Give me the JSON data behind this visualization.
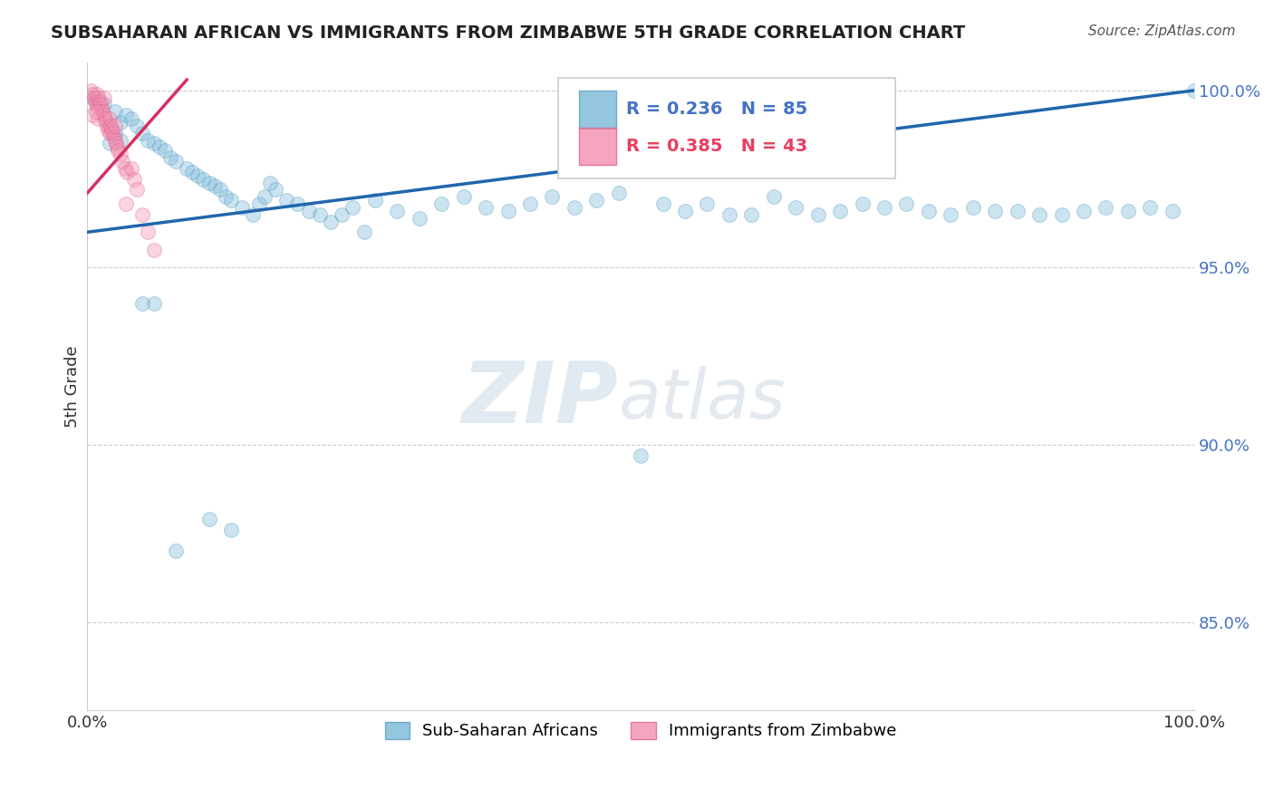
{
  "title": "SUBSAHARAN AFRICAN VS IMMIGRANTS FROM ZIMBABWE 5TH GRADE CORRELATION CHART",
  "source": "Source: ZipAtlas.com",
  "ylabel": "5th Grade",
  "legend_labels": [
    "Sub-Saharan Africans",
    "Immigrants from Zimbabwe"
  ],
  "legend_r_n": [
    {
      "r": "0.236",
      "n": "85"
    },
    {
      "r": "0.385",
      "n": "43"
    }
  ],
  "xlim": [
    0,
    1
  ],
  "ylim": [
    0.825,
    1.008
  ],
  "yticks": [
    0.85,
    0.9,
    0.95,
    1.0
  ],
  "ytick_labels": [
    "85.0%",
    "90.0%",
    "95.0%",
    "100.0%"
  ],
  "xticks": [
    0.0,
    1.0
  ],
  "xtick_labels": [
    "0.0%",
    "100.0%"
  ],
  "blue_line_x": [
    0.0,
    1.0
  ],
  "blue_line_y": [
    0.96,
    1.0
  ],
  "pink_line_x": [
    0.0,
    0.09
  ],
  "pink_line_y": [
    0.971,
    1.003
  ],
  "watermark_zip": "ZIP",
  "watermark_atlas": "atlas",
  "dot_size": 130,
  "dot_alpha": 0.38,
  "blue_color": "#7ab8d9",
  "blue_edge_color": "#5a9cbf",
  "pink_color": "#f48fb1",
  "pink_edge_color": "#e06090",
  "trend_blue_color": "#2166ac",
  "trend_pink_color": "#d63060",
  "grid_color": "#cccccc",
  "background_color": "#ffffff",
  "blue_scatter_x": [
    0.005,
    0.01,
    0.015,
    0.02,
    0.02,
    0.025,
    0.025,
    0.03,
    0.03,
    0.035,
    0.04,
    0.045,
    0.05,
    0.055,
    0.06,
    0.065,
    0.07,
    0.075,
    0.08,
    0.09,
    0.095,
    0.1,
    0.105,
    0.11,
    0.115,
    0.12,
    0.125,
    0.13,
    0.14,
    0.15,
    0.155,
    0.16,
    0.165,
    0.17,
    0.18,
    0.19,
    0.2,
    0.21,
    0.22,
    0.23,
    0.24,
    0.26,
    0.28,
    0.3,
    0.32,
    0.34,
    0.36,
    0.38,
    0.4,
    0.42,
    0.44,
    0.46,
    0.48,
    0.5,
    0.52,
    0.54,
    0.56,
    0.58,
    0.6,
    0.62,
    0.64,
    0.66,
    0.68,
    0.7,
    0.72,
    0.74,
    0.76,
    0.78,
    0.8,
    0.82,
    0.84,
    0.86,
    0.88,
    0.9,
    0.92,
    0.94,
    0.96,
    0.98,
    1.0,
    0.05,
    0.06,
    0.08,
    0.11,
    0.13,
    0.25
  ],
  "blue_scatter_y": [
    0.998,
    0.997,
    0.996,
    0.99,
    0.985,
    0.988,
    0.994,
    0.986,
    0.991,
    0.993,
    0.992,
    0.99,
    0.988,
    0.986,
    0.985,
    0.984,
    0.983,
    0.981,
    0.98,
    0.978,
    0.977,
    0.976,
    0.975,
    0.974,
    0.973,
    0.972,
    0.97,
    0.969,
    0.967,
    0.965,
    0.968,
    0.97,
    0.974,
    0.972,
    0.969,
    0.968,
    0.966,
    0.965,
    0.963,
    0.965,
    0.967,
    0.969,
    0.966,
    0.964,
    0.968,
    0.97,
    0.967,
    0.966,
    0.968,
    0.97,
    0.967,
    0.969,
    0.971,
    0.897,
    0.968,
    0.966,
    0.968,
    0.965,
    0.965,
    0.97,
    0.967,
    0.965,
    0.966,
    0.968,
    0.967,
    0.968,
    0.966,
    0.965,
    0.967,
    0.966,
    0.966,
    0.965,
    0.965,
    0.966,
    0.967,
    0.966,
    0.967,
    0.966,
    1.0,
    0.94,
    0.94,
    0.87,
    0.879,
    0.876,
    0.96
  ],
  "pink_scatter_x": [
    0.003,
    0.005,
    0.006,
    0.007,
    0.008,
    0.009,
    0.01,
    0.01,
    0.01,
    0.011,
    0.012,
    0.013,
    0.014,
    0.015,
    0.015,
    0.016,
    0.017,
    0.018,
    0.019,
    0.02,
    0.02,
    0.021,
    0.022,
    0.023,
    0.024,
    0.025,
    0.025,
    0.026,
    0.027,
    0.028,
    0.03,
    0.032,
    0.034,
    0.036,
    0.04,
    0.042,
    0.045,
    0.05,
    0.055,
    0.005,
    0.008,
    0.035,
    0.06
  ],
  "pink_scatter_y": [
    1.0,
    0.999,
    0.998,
    0.997,
    0.996,
    0.999,
    0.998,
    0.995,
    0.992,
    0.997,
    0.996,
    0.995,
    0.994,
    0.993,
    0.998,
    0.992,
    0.991,
    0.99,
    0.989,
    0.988,
    0.992,
    0.99,
    0.989,
    0.988,
    0.987,
    0.986,
    0.99,
    0.985,
    0.984,
    0.983,
    0.982,
    0.98,
    0.978,
    0.977,
    0.978,
    0.975,
    0.972,
    0.965,
    0.96,
    0.993,
    0.994,
    0.968,
    0.955
  ]
}
